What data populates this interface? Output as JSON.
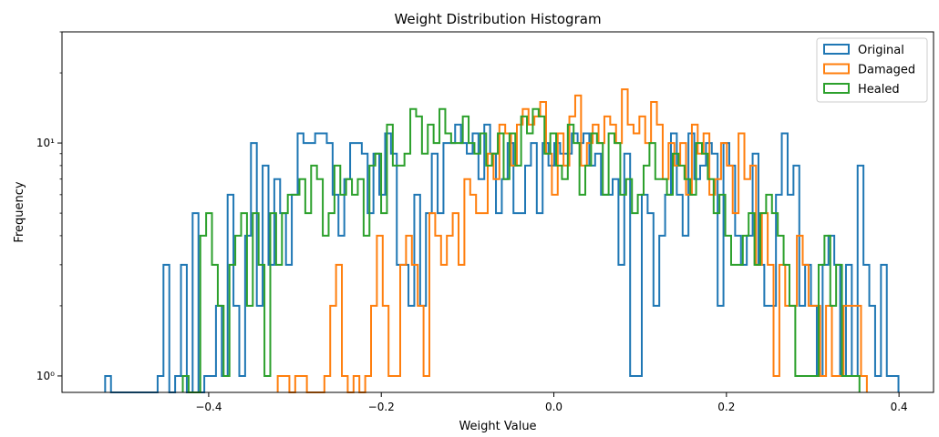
{
  "chart_data": {
    "type": "histogram",
    "title": "Weight Distribution Histogram",
    "xlabel": "Weight Value",
    "ylabel": "Frequency",
    "xlim": [
      -0.57,
      0.44
    ],
    "ylim": [
      0.85,
      30
    ],
    "yscale": "log",
    "grid": false,
    "legend_position": "top-right",
    "xticks": [
      -0.4,
      -0.2,
      0.0,
      0.2,
      0.4
    ],
    "xtick_labels": [
      "−0.4",
      "−0.2",
      "0.0",
      "0.2",
      "0.4"
    ],
    "yticks": [
      1,
      10
    ],
    "ytick_labels": [
      "10⁰",
      "10¹"
    ],
    "series": [
      {
        "name": "Original",
        "color": "#1f77b4",
        "bin_start": -0.52,
        "bin_width": 0.00676,
        "counts": [
          1,
          0,
          0,
          0,
          0,
          0,
          0,
          0,
          0,
          1,
          3,
          0,
          1,
          3,
          0,
          5,
          0,
          1,
          1,
          2,
          1,
          6,
          2,
          1,
          4,
          10,
          2,
          8,
          3,
          7,
          5,
          3,
          6,
          11,
          10,
          10,
          11,
          11,
          10,
          6,
          4,
          7,
          10,
          10,
          9,
          5,
          9,
          6,
          11,
          9,
          3,
          3,
          2,
          6,
          2,
          5,
          9,
          5,
          10,
          10,
          12,
          10,
          9,
          11,
          7,
          12,
          9,
          5,
          7,
          10,
          5,
          5,
          8,
          10,
          5,
          10,
          8,
          10,
          9,
          9,
          11,
          10,
          11,
          8,
          9,
          6,
          6,
          7,
          3,
          9,
          1,
          1,
          6,
          5,
          2,
          4,
          6,
          11,
          6,
          4,
          11,
          7,
          8,
          10,
          9,
          2,
          10,
          8,
          4,
          3,
          4,
          9,
          3,
          2,
          2,
          6,
          11,
          6,
          8,
          2,
          3,
          2,
          1,
          3,
          4,
          3,
          1,
          3,
          1,
          8,
          3,
          2,
          1,
          3,
          1,
          1
        ]
      },
      {
        "name": "Damaged",
        "color": "#ff7f0e",
        "bin_start": -0.32,
        "bin_width": 0.00676,
        "counts": [
          1,
          1,
          0,
          1,
          1,
          0,
          0,
          0,
          1,
          2,
          3,
          1,
          0,
          1,
          0,
          1,
          2,
          4,
          2,
          1,
          1,
          3,
          4,
          3,
          2,
          1,
          5,
          4,
          3,
          4,
          5,
          3,
          7,
          6,
          5,
          5,
          9,
          7,
          12,
          11,
          8,
          12,
          14,
          12,
          13,
          15,
          9,
          6,
          11,
          8,
          13,
          16,
          8,
          10,
          12,
          10,
          13,
          12,
          10,
          17,
          12,
          11,
          13,
          10,
          15,
          12,
          7,
          10,
          8,
          10,
          6,
          12,
          9,
          11,
          6,
          7,
          10,
          8,
          5,
          11,
          7,
          8,
          3,
          5,
          3,
          1,
          3,
          2,
          2,
          4,
          3,
          2,
          2,
          1,
          2,
          1,
          1,
          2,
          2,
          2,
          1
        ]
      },
      {
        "name": "Healed",
        "color": "#2ca02c",
        "bin_start": -0.43,
        "bin_width": 0.00676,
        "counts": [
          1,
          0,
          0,
          4,
          5,
          3,
          2,
          1,
          3,
          4,
          5,
          2,
          5,
          3,
          1,
          5,
          3,
          5,
          6,
          6,
          7,
          5,
          8,
          7,
          4,
          5,
          8,
          6,
          7,
          6,
          7,
          4,
          8,
          9,
          5,
          12,
          8,
          8,
          9,
          14,
          13,
          9,
          12,
          10,
          14,
          11,
          10,
          10,
          13,
          10,
          9,
          11,
          8,
          9,
          11,
          7,
          11,
          8,
          13,
          11,
          14,
          13,
          9,
          11,
          8,
          7,
          12,
          10,
          6,
          8,
          11,
          10,
          6,
          11,
          10,
          6,
          7,
          5,
          6,
          8,
          10,
          7,
          7,
          6,
          9,
          8,
          7,
          6,
          10,
          9,
          7,
          5,
          6,
          4,
          3,
          3,
          4,
          5,
          3,
          5,
          6,
          5,
          4,
          3,
          2,
          1,
          1,
          1,
          1,
          3,
          4,
          2,
          3,
          1,
          1,
          1
        ]
      }
    ]
  }
}
